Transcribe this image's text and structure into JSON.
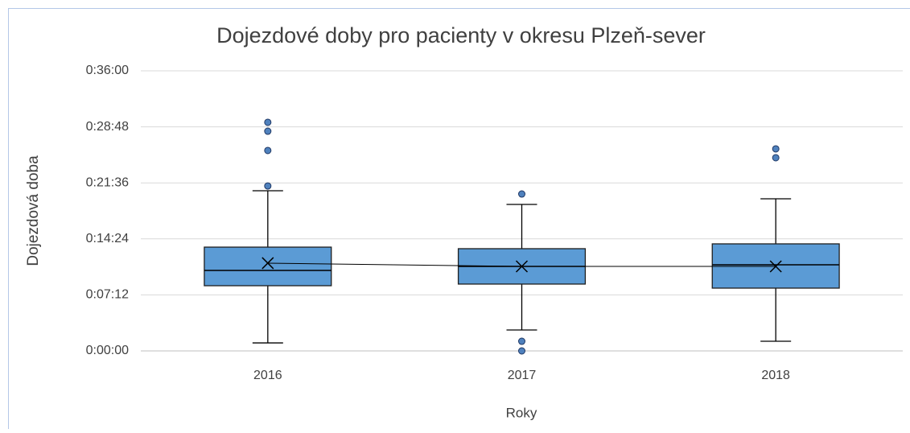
{
  "chart_data": {
    "type": "box",
    "title": "Dojezdové doby pro pacienty v okresu Plzeň-sever",
    "x_label": "Roky",
    "y_label": "Dojezdová doba",
    "categories": [
      "2016",
      "2017",
      "2018"
    ],
    "color": "#5b9bd5",
    "grid": true,
    "ylim": [
      0,
      36
    ],
    "yticks": [
      {
        "value": 0,
        "label": "0:00:00"
      },
      {
        "value": 7.2,
        "label": "0:07:12"
      },
      {
        "value": 14.4,
        "label": "0:14:24"
      },
      {
        "value": 21.6,
        "label": "0:21:36"
      },
      {
        "value": 28.8,
        "label": "0:28:48"
      },
      {
        "value": 36,
        "label": "0:36:00"
      }
    ],
    "boxes": [
      {
        "min": 1.03,
        "q1": 8.38,
        "median": 10.34,
        "q3": 13.34,
        "max": 20.59,
        "mean": 11.28,
        "outliers": [
          21.2,
          25.76,
          28.24,
          29.38
        ]
      },
      {
        "min": 2.69,
        "q1": 8.59,
        "median": 10.86,
        "q3": 13.14,
        "max": 18.83,
        "mean": 10.86,
        "outliers": [
          20.17,
          1.24,
          0
        ]
      },
      {
        "min": 1.24,
        "q1": 8.07,
        "median": 11.07,
        "q3": 13.76,
        "max": 19.55,
        "mean": 10.86,
        "outliers": [
          24.83,
          25.97
        ]
      }
    ]
  }
}
